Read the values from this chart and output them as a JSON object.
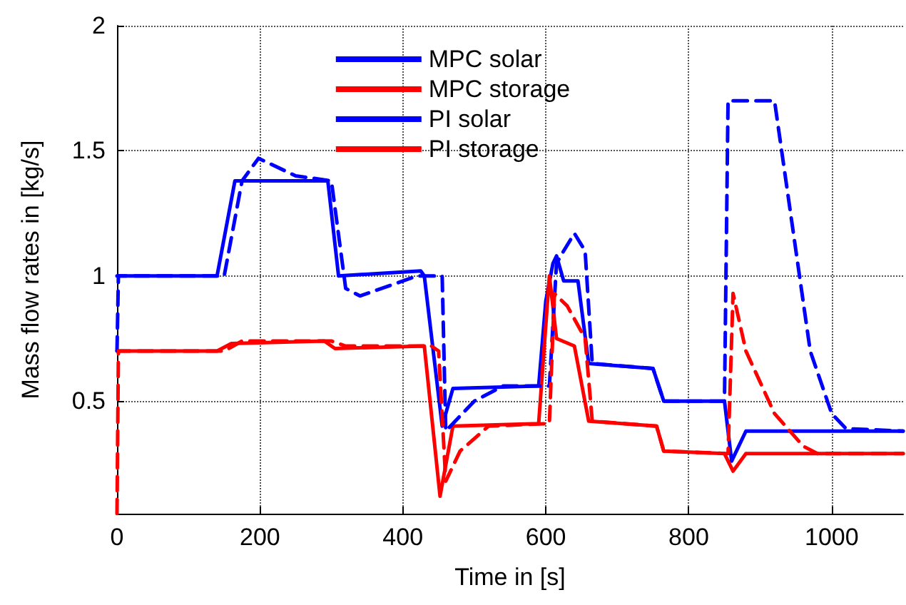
{
  "chart_data": {
    "type": "line",
    "xlabel": "Time in [s]",
    "ylabel": "Mass flow rates in [kg/s]",
    "xlim": [
      0,
      1100
    ],
    "ylim": [
      0.05,
      2
    ],
    "xticks": [
      0,
      200,
      400,
      600,
      800,
      1000
    ],
    "yticks": [
      0.5,
      1,
      1.5,
      2
    ],
    "grid": true,
    "legend": "top",
    "marker": "none",
    "series": [
      {
        "name": "MPC solar",
        "color": "#0000ff",
        "line_style": "solid",
        "x": [
          0,
          140,
          165,
          295,
          310,
          425,
          430,
          455,
          470,
          590,
          600,
          610,
          615,
          625,
          645,
          660,
          750,
          765,
          850,
          860,
          880,
          1100
        ],
        "values": [
          1,
          1,
          1.38,
          1.38,
          1.0,
          1.02,
          1.0,
          0.4,
          0.55,
          0.56,
          0.9,
          1.05,
          1.08,
          0.98,
          0.98,
          0.65,
          0.63,
          0.5,
          0.5,
          0.26,
          0.38,
          0.38
        ]
      },
      {
        "name": "MPC storage",
        "color": "#ff0000",
        "line_style": "solid",
        "x": [
          0,
          140,
          160,
          290,
          305,
          430,
          452,
          470,
          590,
          605,
          615,
          640,
          660,
          755,
          765,
          850,
          862,
          880,
          1100
        ],
        "values": [
          0.7,
          0.7,
          0.73,
          0.74,
          0.71,
          0.72,
          0.12,
          0.4,
          0.41,
          1.0,
          0.75,
          0.72,
          0.42,
          0.4,
          0.3,
          0.29,
          0.22,
          0.29,
          0.29
        ]
      },
      {
        "name": "PI solar",
        "color": "#0000ff",
        "line_style": "dashed",
        "x": [
          0,
          2,
          150,
          175,
          198,
          250,
          300,
          320,
          340,
          420,
          455,
          460,
          500,
          540,
          605,
          615,
          625,
          640,
          655,
          665,
          750,
          765,
          850,
          855,
          920,
          945,
          970,
          1000,
          1020,
          1100
        ],
        "values": [
          0.7,
          1,
          1,
          1.38,
          1.47,
          1.4,
          1.38,
          0.95,
          0.92,
          1.0,
          1.0,
          0.38,
          0.5,
          0.56,
          0.56,
          1.05,
          1.1,
          1.17,
          1.1,
          0.65,
          0.63,
          0.5,
          0.5,
          1.7,
          1.7,
          1.2,
          0.7,
          0.45,
          0.39,
          0.38
        ]
      },
      {
        "name": "PI storage",
        "color": "#ff0000",
        "line_style": "dashed",
        "x": [
          0,
          2,
          150,
          175,
          300,
          320,
          440,
          450,
          460,
          480,
          520,
          605,
          612,
          630,
          655,
          665,
          755,
          765,
          855,
          862,
          880,
          920,
          960,
          980,
          1100
        ],
        "values": [
          0.05,
          0.7,
          0.7,
          0.74,
          0.74,
          0.72,
          0.72,
          0.7,
          0.18,
          0.3,
          0.4,
          0.41,
          0.93,
          0.88,
          0.75,
          0.42,
          0.4,
          0.3,
          0.29,
          0.93,
          0.7,
          0.45,
          0.32,
          0.29,
          0.29
        ]
      }
    ]
  }
}
